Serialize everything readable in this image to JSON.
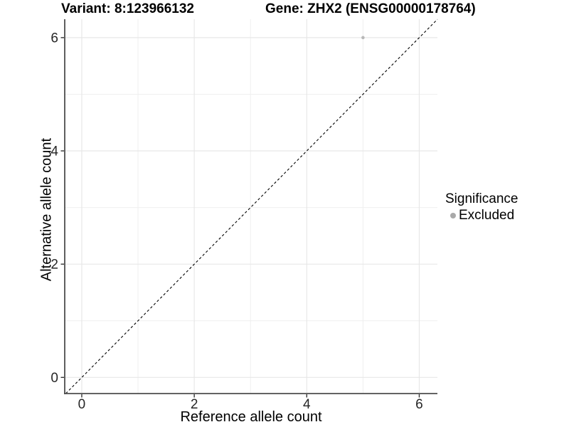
{
  "chart_data": {
    "type": "scatter",
    "titles": {
      "left": "Variant: 8:123966132",
      "right": "Gene: ZHX2 (ENSG00000178764)"
    },
    "xlabel": "Reference allele count",
    "ylabel": "Alternative allele count",
    "xlim": [
      -0.303,
      6.323
    ],
    "ylim": [
      -0.285,
      6.325
    ],
    "x_ticks": [
      0,
      2,
      4,
      6
    ],
    "y_ticks": [
      0,
      2,
      4,
      6
    ],
    "grid_breaks_major": [
      0,
      2,
      4,
      6
    ],
    "grid_breaks_minor": [
      1,
      3,
      5
    ],
    "grid": true,
    "reference_line": {
      "type": "identity",
      "style": "dashed",
      "color": "#000000"
    },
    "series": [
      {
        "name": "Excluded",
        "color": "#b8b8b8",
        "points": [
          {
            "x": 5,
            "y": 6
          }
        ]
      }
    ],
    "legend": {
      "title": "Significance",
      "position": "right",
      "entries": [
        {
          "label": "Excluded",
          "color": "#a9a9a9"
        }
      ]
    },
    "colors": {
      "panel_background": "#ffffff",
      "grid_major": "#e7e7e7",
      "grid_minor": "#efefef",
      "axis_line": "#4d4d4d",
      "tick_mark": "#333333",
      "tick_label": "#262626"
    }
  }
}
